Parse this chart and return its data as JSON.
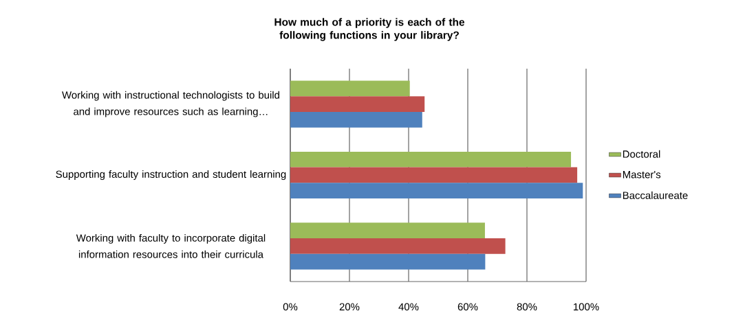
{
  "chart_data": {
    "type": "bar",
    "orientation": "horizontal",
    "title": "How much of a priority is each of the following functions in your library?",
    "categories": [
      "Working with instructional technologists to build and improve resources such as learning…",
      "Supporting faculty instruction and student learning",
      "Working with faculty to incorporate digital information resources into their curricula"
    ],
    "series": [
      {
        "name": "Doctoral",
        "color": "#9bbb59",
        "values": [
          40.4,
          94.9,
          65.8
        ]
      },
      {
        "name": "Master's",
        "color": "#c0504d",
        "values": [
          45.4,
          97.0,
          72.7
        ]
      },
      {
        "name": "Baccalaureate",
        "color": "#4f81bd",
        "values": [
          44.6,
          98.9,
          65.9
        ]
      }
    ],
    "xlim": [
      0,
      100
    ],
    "xticks": [
      {
        "value": 0,
        "label": "0%"
      },
      {
        "value": 20,
        "label": "20%"
      },
      {
        "value": 40,
        "label": "40%"
      },
      {
        "value": 60,
        "label": "60%"
      },
      {
        "value": 80,
        "label": "80%"
      },
      {
        "value": 100,
        "label": "100%"
      }
    ],
    "grid": "x",
    "legend": "right"
  }
}
